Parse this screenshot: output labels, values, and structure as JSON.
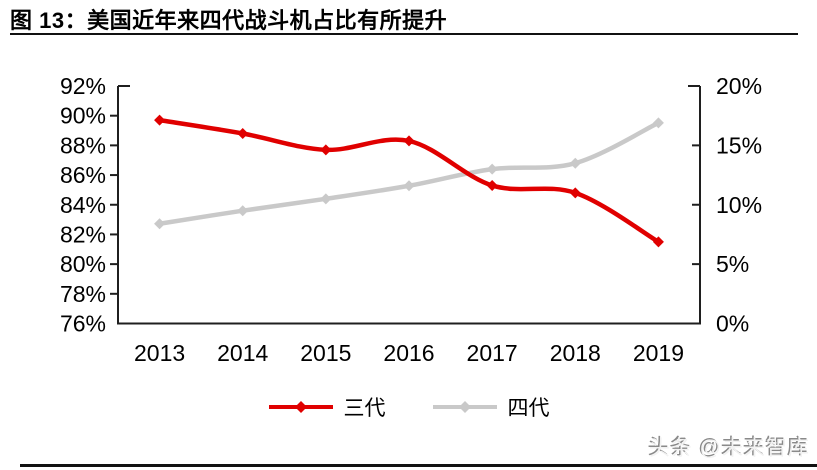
{
  "header": {
    "title": "图 13：美国近年来四代战斗机占比有所提升"
  },
  "chart_data": {
    "type": "line",
    "title": "美国近年来四代战斗机占比有所提升",
    "categories": [
      "2013",
      "2014",
      "2015",
      "2016",
      "2017",
      "2018",
      "2019"
    ],
    "series": [
      {
        "name": "三代",
        "axis": "left",
        "color": "#e00000",
        "values": [
          89.7,
          88.8,
          87.7,
          88.3,
          85.3,
          84.8,
          81.5
        ]
      },
      {
        "name": "四代",
        "axis": "right",
        "color": "#c9c9c9",
        "values": [
          8.4,
          9.5,
          10.5,
          11.6,
          13.0,
          13.5,
          16.9
        ]
      }
    ],
    "left_axis": {
      "min": 76,
      "max": 92,
      "step": 2,
      "tick_labels": [
        "92%",
        "90%",
        "88%",
        "86%",
        "84%",
        "82%",
        "80%",
        "78%",
        "76%"
      ]
    },
    "right_axis": {
      "min": 0,
      "max": 20,
      "step": 5,
      "tick_labels": [
        "20%",
        "15%",
        "10%",
        "5%",
        "0%"
      ]
    },
    "grid": false,
    "legend_position": "bottom",
    "line_style": "smooth",
    "marker": "diamond"
  },
  "watermark": {
    "text": "头条 @未来智库"
  },
  "colors": {
    "series_gen3": "#e00000",
    "series_gen4": "#c9c9c9",
    "axis": "#1f1f1f",
    "text": "#000000"
  }
}
